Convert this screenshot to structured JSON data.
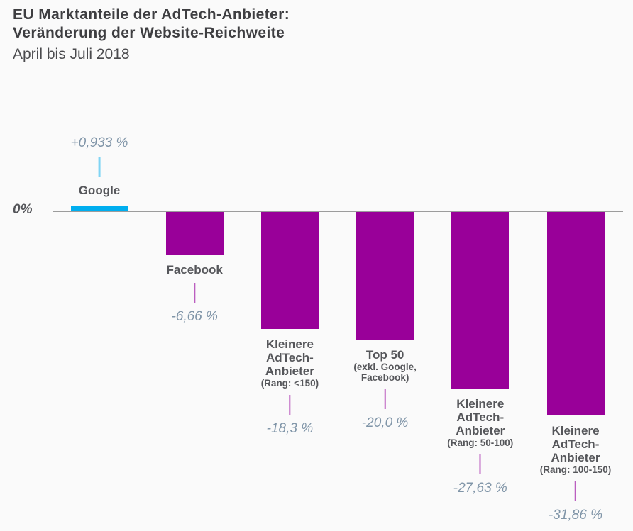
{
  "header": {
    "title_line1": "EU Marktanteile der AdTech-Anbieter:",
    "title_line2": "Veränderung der Website-Reichweite",
    "subtitle": "April bis Juli 2018"
  },
  "axis": {
    "zero_label": "0%"
  },
  "colors": {
    "background": "#fafafa",
    "positive_bar": "#00aeef",
    "negative_bar": "#990099",
    "positive_connector": "#7fd4f4",
    "negative_connector": "#bb5ec0",
    "value_text": "#8095a8",
    "label_text": "#55565a",
    "axis_line": "#9c9c9c",
    "title_text": "#3e3e41",
    "subtitle_text": "#4a4a4d"
  },
  "chart_data": {
    "type": "bar",
    "title": "EU Marktanteile der AdTech-Anbieter: Veränderung der Website-Reichweite",
    "subtitle": "April bis Juli 2018",
    "orientation": "vertical",
    "unit": "%",
    "baseline": 0,
    "ylim": [
      -32,
      1
    ],
    "grid": false,
    "legend": false,
    "categories": [
      {
        "name": "Google",
        "label_lines": [
          "Google"
        ],
        "sublabel_lines": [],
        "value": 0.933,
        "value_label": "+0,933 %"
      },
      {
        "name": "Facebook",
        "label_lines": [
          "Facebook"
        ],
        "sublabel_lines": [],
        "value": -6.66,
        "value_label": "-6,66 %"
      },
      {
        "name": "Kleinere AdTech-Anbieter (Rang: <150)",
        "label_lines": [
          "Kleinere",
          "AdTech-",
          "Anbieter"
        ],
        "sublabel_lines": [
          "(Rang: <150)"
        ],
        "value": -18.3,
        "value_label": "-18,3 %"
      },
      {
        "name": "Top 50 (exkl. Google, Facebook)",
        "label_lines": [
          "Top 50"
        ],
        "sublabel_lines": [
          "(exkl. Google,",
          "Facebook)"
        ],
        "value": -20.0,
        "value_label": "-20,0 %"
      },
      {
        "name": "Kleinere AdTech-Anbieter (Rang: 50-100)",
        "label_lines": [
          "Kleinere",
          "AdTech-",
          "Anbieter"
        ],
        "sublabel_lines": [
          "(Rang: 50-100)"
        ],
        "value": -27.63,
        "value_label": "-27,63 %"
      },
      {
        "name": "Kleinere AdTech-Anbieter (Rang: 100-150)",
        "label_lines": [
          "Kleinere",
          "AdTech-",
          "Anbieter"
        ],
        "sublabel_lines": [
          "(Rang: 100-150)"
        ],
        "value": -31.86,
        "value_label": "-31,86 %"
      }
    ]
  }
}
